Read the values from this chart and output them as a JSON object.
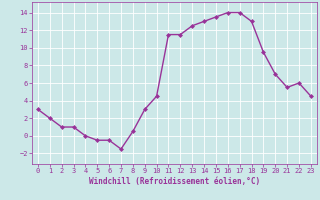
{
  "x": [
    0,
    1,
    2,
    3,
    4,
    5,
    6,
    7,
    8,
    9,
    10,
    11,
    12,
    13,
    14,
    15,
    16,
    17,
    18,
    19,
    20,
    21,
    22,
    23
  ],
  "y": [
    3,
    2,
    1,
    1,
    0,
    -0.5,
    -0.5,
    -1.5,
    0.5,
    3,
    4.5,
    11.5,
    11.5,
    12.5,
    13,
    13.5,
    14,
    14,
    13,
    9.5,
    7,
    5.5,
    6,
    4.5
  ],
  "line_color": "#993399",
  "marker": "D",
  "marker_size": 2.0,
  "line_width": 1.0,
  "background_color": "#cce8e8",
  "grid_color": "#ffffff",
  "xlabel": "Windchill (Refroidissement éolien,°C)",
  "xlabel_color": "#993399",
  "tick_color": "#993399",
  "xlim": [
    -0.5,
    23.5
  ],
  "ylim": [
    -3.2,
    15.2
  ],
  "yticks": [
    -2,
    0,
    2,
    4,
    6,
    8,
    10,
    12,
    14
  ],
  "xticks": [
    0,
    1,
    2,
    3,
    4,
    5,
    6,
    7,
    8,
    9,
    10,
    11,
    12,
    13,
    14,
    15,
    16,
    17,
    18,
    19,
    20,
    21,
    22,
    23
  ],
  "label_fontsize": 5.5,
  "tick_fontsize": 5.0
}
